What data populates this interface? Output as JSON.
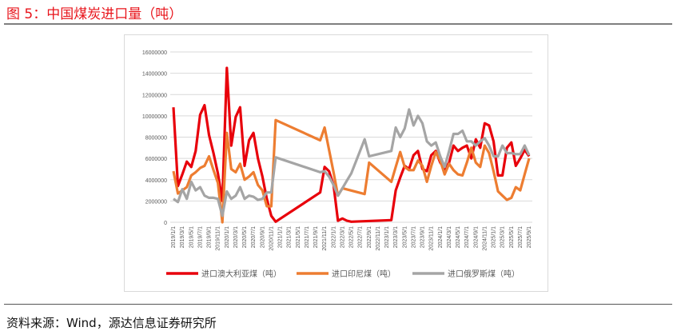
{
  "title": "图 5：中国煤炭进口量（吨）",
  "source": "资料来源：Wind，源达信息证券研究所",
  "chart_data": {
    "type": "line",
    "title": "",
    "xlabel": "",
    "ylabel": "",
    "ylim": [
      0,
      16000000
    ],
    "yticks": [
      0,
      2000000,
      4000000,
      6000000,
      8000000,
      10000000,
      12000000,
      14000000,
      16000000
    ],
    "ytick_labels": [
      "0",
      "2000000",
      "4000000",
      "6000000",
      "8000000",
      "10000000",
      "12000000",
      "14000000",
      "16000000"
    ],
    "x_start": "2019/1/1",
    "x_end": "2025/9/1",
    "x_frequency": "monthly",
    "xtick_labels": [
      "2019/1/1",
      "2019/3/1",
      "2019/5/1",
      "2019/7/1",
      "2019/9/1",
      "2019/11/1",
      "2020/1/1",
      "2020/3/1",
      "2020/5/1",
      "2020/7/1",
      "2020/9/1",
      "2020/11/1",
      "2021/1/1",
      "2021/3/1",
      "2021/5/1",
      "2021/7/1",
      "2021/9/1",
      "2021/11/1",
      "2022/1/1",
      "2022/3/1",
      "2022/5/1",
      "2022/7/1",
      "2022/9/1",
      "2022/11/1",
      "2023/1/1",
      "2023/3/1",
      "2023/5/1",
      "2023/7/1",
      "2023/9/1",
      "2023/11/1",
      "2024/1/1",
      "2024/3/1",
      "2024/5/1",
      "2024/7/1",
      "2024/9/1",
      "2024/11/1",
      "2025/1/1",
      "2025/3/1",
      "2025/5/1",
      "2025/7/1",
      "2025/9/1"
    ],
    "grid": true,
    "legend_placement": "bottom",
    "series": [
      {
        "name": "进口澳大利亚煤（吨）",
        "color": "#e8000b",
        "values": [
          10800000,
          3400000,
          4500000,
          5700000,
          5200000,
          6700000,
          10100000,
          11000000,
          8200000,
          6500000,
          4600000,
          2000000,
          14500000,
          7200000,
          9900000,
          10800000,
          5300000,
          7700000,
          8400000,
          6000000,
          4300000,
          2200000,
          600000,
          50000,
          null,
          null,
          null,
          null,
          null,
          null,
          null,
          null,
          null,
          2800000,
          5200000,
          4800000,
          3500000,
          150000,
          350000,
          150000,
          50000,
          null,
          null,
          null,
          null,
          null,
          null,
          null,
          null,
          200000,
          3000000,
          4200000,
          5300000,
          5000000,
          6300000,
          6700000,
          5000000,
          4800000,
          6300000,
          6700000,
          5600000,
          5000000,
          5600000,
          7200000,
          6700000,
          7000000,
          7200000,
          6000000,
          7800000,
          7000000,
          9300000,
          9100000,
          7600000,
          4400000,
          4400000,
          7000000,
          7500000,
          5300000,
          6000000,
          6800000,
          6200000
        ]
      },
      {
        "name": "进口印尼煤（吨）",
        "color": "#ed7d31",
        "values": [
          4800000,
          2700000,
          3000000,
          3300000,
          4400000,
          4700000,
          5100000,
          5300000,
          6200000,
          4900000,
          3700000,
          0,
          8400000,
          5000000,
          4700000,
          5500000,
          4000000,
          4300000,
          4700000,
          3500000,
          3000000,
          1500000,
          1500000,
          9600000,
          null,
          null,
          null,
          null,
          null,
          null,
          null,
          null,
          null,
          7700000,
          8900000,
          6800000,
          4700000,
          2500000,
          3200000,
          null,
          null,
          null,
          null,
          2650000,
          5600000,
          null,
          null,
          null,
          null,
          3800000,
          5200000,
          6600000,
          5200000,
          4900000,
          4900000,
          5800000,
          5300000,
          3800000,
          5300000,
          6600000,
          5800000,
          4500000,
          5500000,
          4900000,
          4500000,
          4400000,
          5600000,
          7000000,
          5600000,
          5200000,
          7200000,
          6500000,
          4800000,
          2900000,
          2500000,
          2100000,
          2300000,
          3300000,
          3000000,
          4500000,
          6000000
        ]
      },
      {
        "name": "进口俄罗斯煤（吨）",
        "color": "#a5a5a5",
        "values": [
          2200000,
          1900000,
          3100000,
          2200000,
          3800000,
          3000000,
          3300000,
          2500000,
          2300000,
          2300000,
          2200000,
          600000,
          2900000,
          2200000,
          2500000,
          3300000,
          2200000,
          2500000,
          2400000,
          2100000,
          2200000,
          2800000,
          2800000,
          6100000,
          null,
          null,
          null,
          null,
          null,
          null,
          null,
          null,
          null,
          4700000,
          4800000,
          4300000,
          3500000,
          2500000,
          3200000,
          3900000,
          4600000,
          null,
          null,
          7800000,
          6200000,
          null,
          null,
          null,
          null,
          6700000,
          8900000,
          8000000,
          8800000,
          10600000,
          9100000,
          10000000,
          9300000,
          7600000,
          7200000,
          7500000,
          6200000,
          5200000,
          6700000,
          8300000,
          8300000,
          8600000,
          7600000,
          7600000,
          7200000,
          7600000,
          7900000,
          7200000,
          6200000,
          6200000,
          7200000,
          6500000,
          6500000,
          6400000,
          6400000,
          7200000,
          6300000
        ]
      }
    ]
  }
}
